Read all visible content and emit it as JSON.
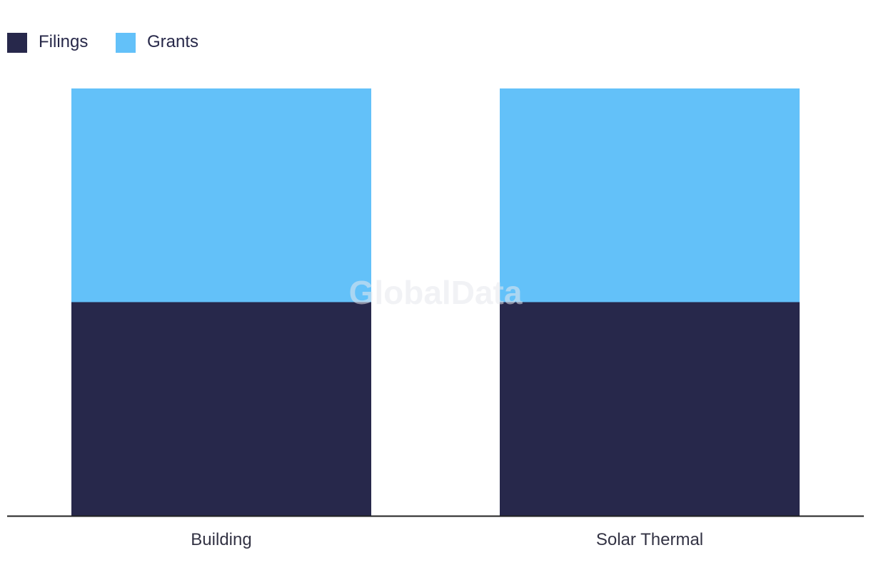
{
  "chart_data": {
    "type": "bar",
    "stacked": true,
    "normalized": true,
    "categories": [
      "Building",
      "Solar Thermal"
    ],
    "series": [
      {
        "name": "Filings",
        "values": [
          50,
          50
        ]
      },
      {
        "name": "Grants",
        "values": [
          50,
          50
        ]
      }
    ],
    "ylim": [
      0,
      100
    ],
    "grid": false,
    "legend": "top-left",
    "watermark": "GlobalData"
  },
  "colors": {
    "Filings": "#27284b",
    "Grants": "#63c1f9",
    "axis": "#222222"
  }
}
